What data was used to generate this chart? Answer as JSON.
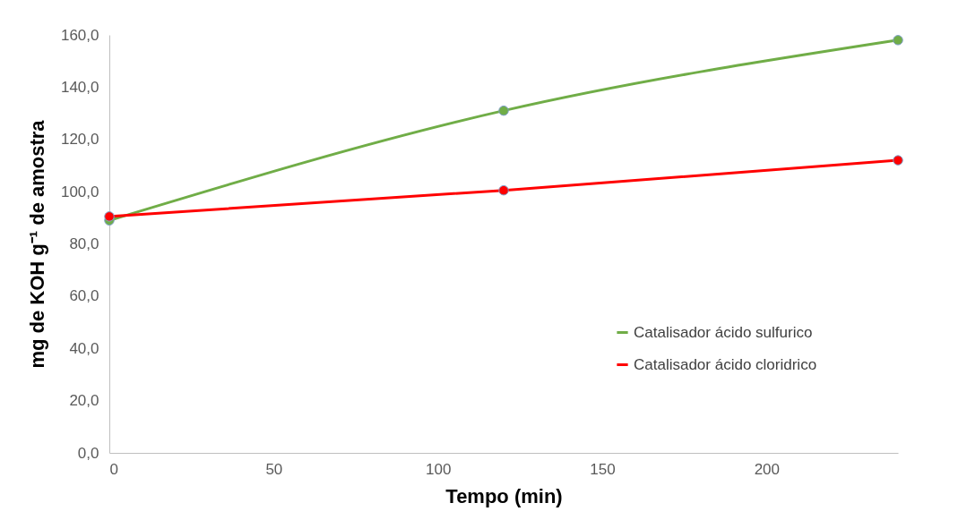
{
  "chart_data": {
    "type": "line",
    "xlabel": "Tempo (min)",
    "ylabel": "mg de KOH g⁻¹ de amostra",
    "xlim": [
      0,
      240
    ],
    "xticks": [
      0,
      50,
      100,
      150,
      200
    ],
    "ylim": [
      0,
      160
    ],
    "yticks": [
      {
        "value": 0,
        "label": "0,0"
      },
      {
        "value": 20,
        "label": "20,0"
      },
      {
        "value": 40,
        "label": "40,0"
      },
      {
        "value": 60,
        "label": "60,0"
      },
      {
        "value": 80,
        "label": "80,0"
      },
      {
        "value": 100,
        "label": "100,0"
      },
      {
        "value": 120,
        "label": "120,0"
      },
      {
        "value": 140,
        "label": "140,0"
      },
      {
        "value": 160,
        "label": "160,0"
      }
    ],
    "grid": false,
    "legend": "bottom right",
    "marker": "circle",
    "line_style": "solid",
    "series": [
      {
        "name": "Catalisador ácido sulfurico",
        "color": "#70ad47",
        "x": [
          0,
          120,
          240
        ],
        "values": [
          89,
          131,
          158
        ]
      },
      {
        "name": "Catalisador ácido cloridrico",
        "color": "#ff0000",
        "x": [
          0,
          120,
          240
        ],
        "values": [
          90.5,
          100.5,
          112
        ]
      }
    ]
  }
}
